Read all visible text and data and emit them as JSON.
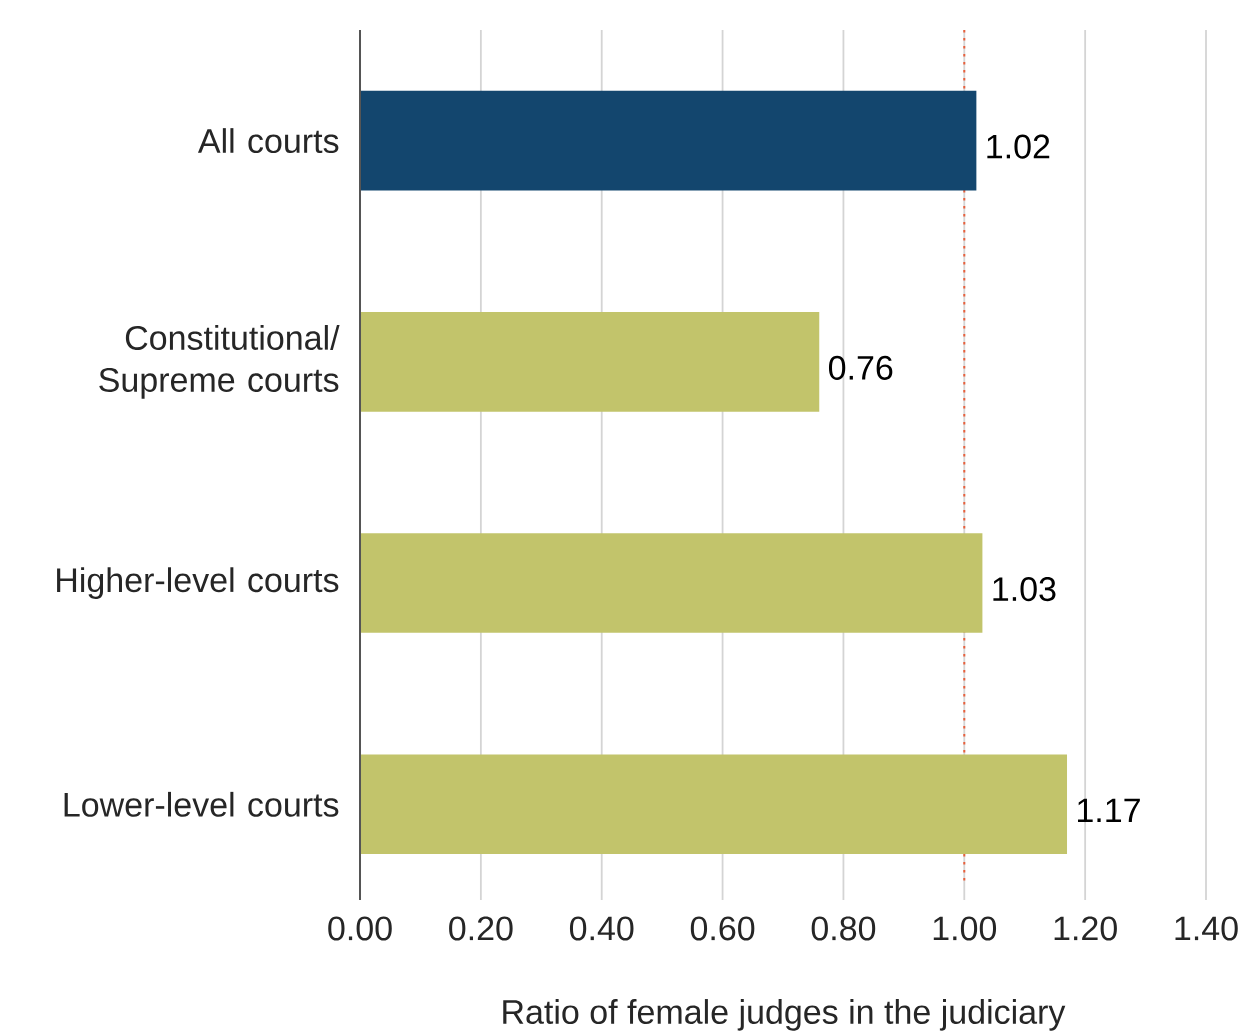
{
  "chart_data": {
    "type": "bar",
    "orientation": "horizontal",
    "categories": [
      "All courts",
      "Constitutional/ Supreme courts",
      "Higher-level courts",
      "Lower-level courts"
    ],
    "values": [
      1.02,
      0.76,
      1.03,
      1.17
    ],
    "colors": [
      "#13466e",
      "#c2c46b",
      "#c2c46b",
      "#c2c46b"
    ],
    "xlabel": "Ratio of female judges in the judiciary",
    "xlim": [
      0,
      1.4
    ],
    "xticks": [
      {
        "value": 0,
        "label": "0.00"
      },
      {
        "value": 0.2,
        "label": "0.20"
      },
      {
        "value": 0.4,
        "label": "0.40"
      },
      {
        "value": 0.6,
        "label": "0.60"
      },
      {
        "value": 0.8,
        "label": "0.80"
      },
      {
        "value": 1,
        "label": "1.00"
      },
      {
        "value": 1.2,
        "label": "1.20"
      },
      {
        "value": 1.4,
        "label": "1.40"
      }
    ],
    "grid": "x",
    "data_labels": true,
    "ref_lines": [
      {
        "axis": "x",
        "value": 1,
        "color": "#e8603c",
        "line_style": "dotted"
      }
    ]
  }
}
